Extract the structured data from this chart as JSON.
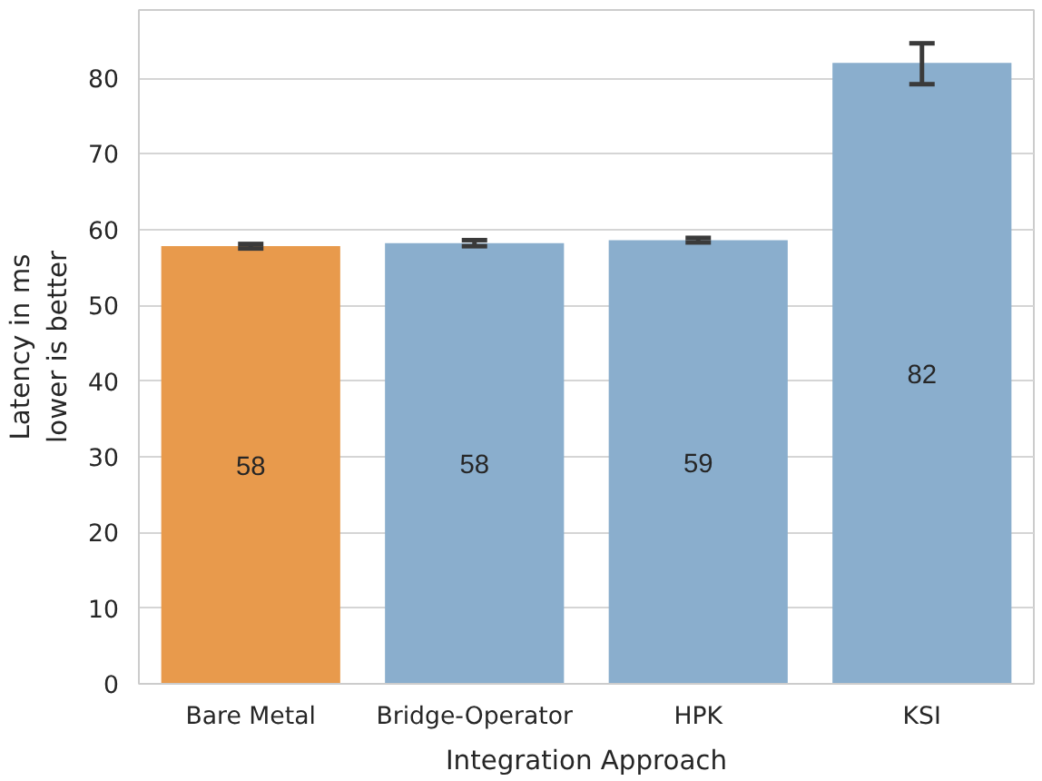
{
  "chart_data": {
    "type": "bar",
    "xlabel": "Integration Approach",
    "ylabel": "Latency in ms\nlower is better",
    "categories": [
      "Bare Metal",
      "Bridge-Operator",
      "HPK",
      "KSI"
    ],
    "values": [
      57.8,
      58.2,
      58.6,
      82.0
    ],
    "colors": [
      "#e89a4c",
      "#8aaecd",
      "#8aaecd",
      "#8aaecd"
    ],
    "errors": [
      [
        57.5,
        58.1
      ],
      [
        57.8,
        58.6
      ],
      [
        58.3,
        58.9
      ],
      [
        79.2,
        84.6
      ]
    ],
    "value_labels": [
      "58",
      "58",
      "59",
      "82"
    ],
    "ylim": [
      0,
      89
    ],
    "yticks": [
      0,
      10,
      20,
      30,
      40,
      50,
      60,
      70,
      80
    ],
    "grid": "y"
  }
}
